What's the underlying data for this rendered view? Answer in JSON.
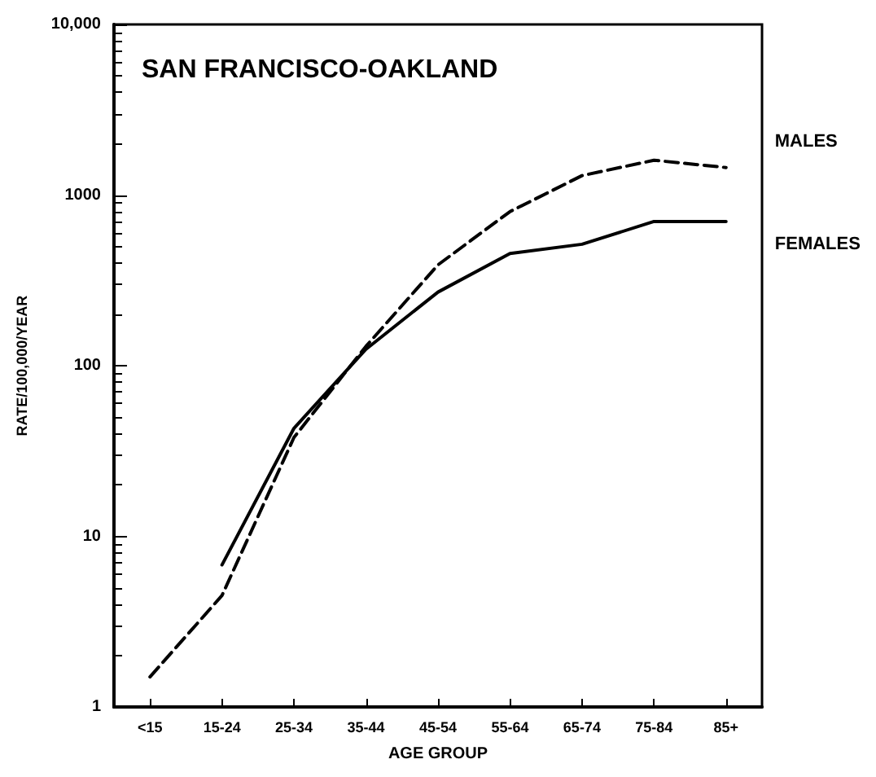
{
  "chart_data": {
    "type": "line",
    "title": "SAN FRANCISCO-OAKLAND",
    "xlabel": "AGE GROUP",
    "ylabel": "RATE/100,000/YEAR",
    "categories": [
      "<15",
      "15-24",
      "25-34",
      "35-44",
      "45-54",
      "55-64",
      "65-74",
      "75-84",
      "85+"
    ],
    "series": [
      {
        "name": "MALES",
        "color": "#000000",
        "line_style": "dashed",
        "values": [
          1.5,
          4.5,
          38,
          130,
          390,
          800,
          1300,
          1600,
          1450
        ]
      },
      {
        "name": "FEMALES",
        "color": "#000000",
        "line_style": "solid",
        "values": [
          null,
          6.8,
          43,
          125,
          270,
          455,
          515,
          700,
          700
        ]
      }
    ],
    "log": "y",
    "ylim": [
      1,
      10000
    ],
    "yticks": [
      1,
      10,
      100,
      1000,
      {
        "value": 10000,
        "label": "10,000"
      }
    ],
    "grid": false,
    "legend": false,
    "marker": "none"
  }
}
